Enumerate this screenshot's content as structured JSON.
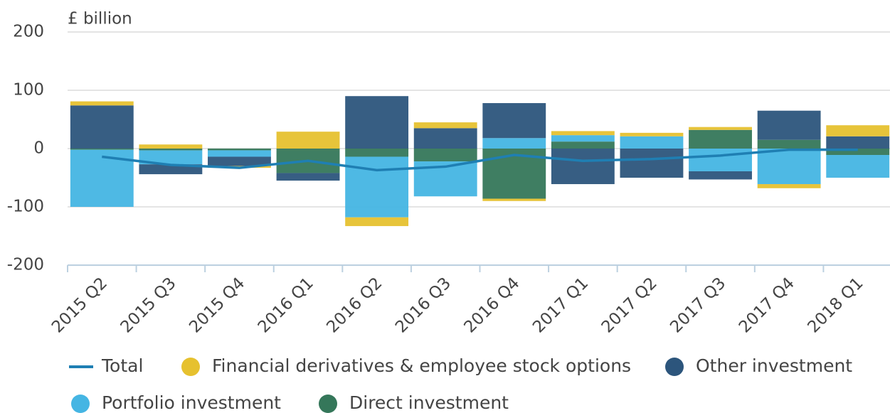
{
  "chart_data": {
    "type": "bar",
    "y_axis_label": "£ billion",
    "categories": [
      "2015 Q2",
      "2015 Q3",
      "2015 Q4",
      "2016 Q1",
      "2016 Q2",
      "2016 Q3",
      "2016 Q4",
      "2017 Q1",
      "2017 Q2",
      "2017 Q3",
      "2017 Q4",
      "2018 Q1"
    ],
    "series": [
      {
        "name": "Total",
        "type": "line",
        "color": "#1f7fb3",
        "values": [
          -14,
          -28,
          -33,
          -21,
          -37,
          -31,
          -11,
          -21,
          -18,
          -12,
          -2,
          -2
        ]
      },
      {
        "name": "Financial derivatives & employee stock options",
        "color": "#e6c12f",
        "values": [
          7,
          7,
          -3,
          29,
          -15,
          10,
          -4,
          7,
          6,
          5,
          -7,
          19
        ]
      },
      {
        "name": "Other investment",
        "color": "#2c557c",
        "values": [
          74,
          -17,
          -16,
          -13,
          90,
          35,
          60,
          -61,
          -50,
          -14,
          50,
          21
        ]
      },
      {
        "name": "Portfolio investment",
        "color": "#45b5e3",
        "values": [
          -98,
          -24,
          -11,
          0,
          -104,
          -60,
          18,
          11,
          21,
          -39,
          -61,
          -39
        ]
      },
      {
        "name": "Direct investment",
        "color": "#35775a",
        "values": [
          -2,
          -3,
          -3,
          -42,
          -14,
          -22,
          -86,
          12,
          0,
          32,
          15,
          -11
        ]
      }
    ],
    "ylim": [
      -200,
      200
    ],
    "yticks": [
      -200,
      -100,
      0,
      100,
      200
    ],
    "grid": true
  }
}
